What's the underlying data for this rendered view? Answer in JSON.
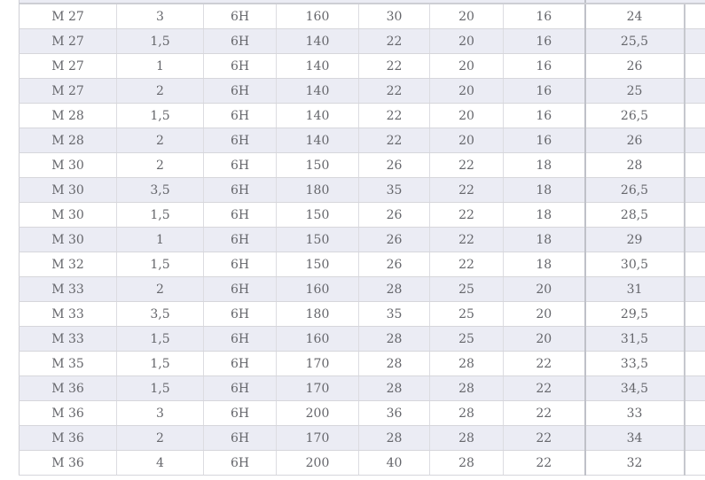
{
  "colors": {
    "row_shaded_background": "#ebecf4",
    "row_white_background": "#ffffff",
    "grid_line": "#d6d6db",
    "heavy_grid_line": "#bfc1c8",
    "cell_text": "#65666b"
  },
  "chart_data": {
    "type": "table",
    "title": "",
    "headers_visible": false,
    "n_columns_visible": 8,
    "rows": [
      [
        "M 27",
        "3",
        "6H",
        "160",
        "30",
        "20",
        "16",
        "24"
      ],
      [
        "M 27",
        "1,5",
        "6H",
        "140",
        "22",
        "20",
        "16",
        "25,5"
      ],
      [
        "M 27",
        "1",
        "6H",
        "140",
        "22",
        "20",
        "16",
        "26"
      ],
      [
        "M 27",
        "2",
        "6H",
        "140",
        "22",
        "20",
        "16",
        "25"
      ],
      [
        "M 28",
        "1,5",
        "6H",
        "140",
        "22",
        "20",
        "16",
        "26,5"
      ],
      [
        "M 28",
        "2",
        "6H",
        "140",
        "22",
        "20",
        "16",
        "26"
      ],
      [
        "M 30",
        "2",
        "6H",
        "150",
        "26",
        "22",
        "18",
        "28"
      ],
      [
        "M 30",
        "3,5",
        "6H",
        "180",
        "35",
        "22",
        "18",
        "26,5"
      ],
      [
        "M 30",
        "1,5",
        "6H",
        "150",
        "26",
        "22",
        "18",
        "28,5"
      ],
      [
        "M 30",
        "1",
        "6H",
        "150",
        "26",
        "22",
        "18",
        "29"
      ],
      [
        "M 32",
        "1,5",
        "6H",
        "150",
        "26",
        "22",
        "18",
        "30,5"
      ],
      [
        "M 33",
        "2",
        "6H",
        "160",
        "28",
        "25",
        "20",
        "31"
      ],
      [
        "M 33",
        "3,5",
        "6H",
        "180",
        "35",
        "25",
        "20",
        "29,5"
      ],
      [
        "M 33",
        "1,5",
        "6H",
        "160",
        "28",
        "25",
        "20",
        "31,5"
      ],
      [
        "M 35",
        "1,5",
        "6H",
        "170",
        "28",
        "28",
        "22",
        "33,5"
      ],
      [
        "M 36",
        "1,5",
        "6H",
        "170",
        "28",
        "28",
        "22",
        "34,5"
      ],
      [
        "M 36",
        "3",
        "6H",
        "200",
        "36",
        "28",
        "22",
        "33"
      ],
      [
        "M 36",
        "2",
        "6H",
        "170",
        "28",
        "28",
        "22",
        "34"
      ],
      [
        "M 36",
        "4",
        "6H",
        "200",
        "40",
        "28",
        "22",
        "32"
      ]
    ]
  }
}
